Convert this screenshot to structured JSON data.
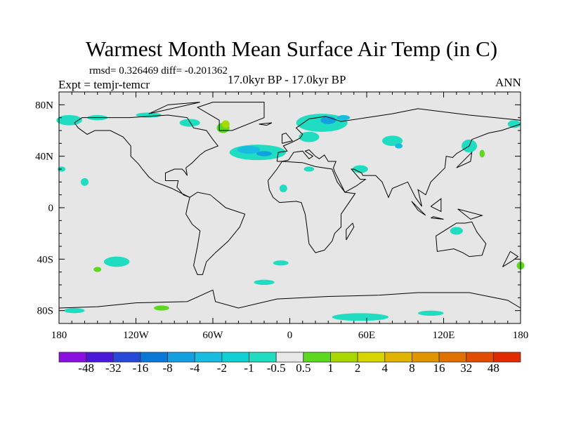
{
  "title": "Warmest Month Mean Surface Air Temp (in C)",
  "stats": "rmsd= 0.326469 diff= -0.201362",
  "experiment": "Expt = temjr-temcr",
  "period": "17.0kyr BP - 17.0kyr BP",
  "season": "ANN",
  "chart_data": {
    "type": "map",
    "projection": "cylindrical-equidistant",
    "lon_range": [
      -180,
      180
    ],
    "lat_range": [
      -90,
      90
    ],
    "x_tick_labels": [
      "180",
      "120W",
      "60W",
      "0",
      "60E",
      "120E",
      "180"
    ],
    "y_tick_labels": [
      "80N",
      "40N",
      "0",
      "40S",
      "80S"
    ],
    "colorbar": {
      "labels": [
        "-48",
        "-32",
        "-16",
        "-8",
        "-4",
        "-2",
        "-1",
        "-0.5",
        "0.5",
        "1",
        "2",
        "4",
        "8",
        "16",
        "32",
        "48"
      ],
      "colors": [
        "#8a10e0",
        "#4a18d8",
        "#2848d8",
        "#0a78d8",
        "#12a0e0",
        "#18bce0",
        "#10d0d4",
        "#20dcc0",
        "#e8e8e8",
        "#5cd820",
        "#a8d800",
        "#d8d400",
        "#e0b400",
        "#e09400",
        "#e07000",
        "#e04c00",
        "#e02a00"
      ]
    },
    "missing_color": "#e6e6e6"
  }
}
